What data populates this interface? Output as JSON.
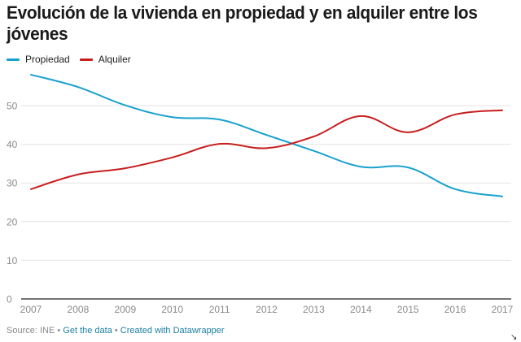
{
  "chart_data": {
    "type": "line",
    "title": "Evolución de la vivienda en propiedad y en alquiler entre los jóvenes",
    "xlabel": "",
    "ylabel": "",
    "x": [
      "2007",
      "2008",
      "2009",
      "2010",
      "2011",
      "2012",
      "2013",
      "2014",
      "2015",
      "2016",
      "2017"
    ],
    "series": [
      {
        "name": "Propiedad",
        "color": "#18a1cd",
        "values": [
          58.0,
          54.8,
          50.1,
          47.0,
          46.4,
          42.4,
          38.3,
          34.2,
          34.0,
          28.4,
          26.5
        ]
      },
      {
        "name": "Alquiler",
        "color": "#c71e1d",
        "values": [
          28.4,
          32.2,
          33.8,
          36.6,
          40.1,
          39.0,
          42.0,
          47.3,
          43.1,
          47.7,
          48.8
        ]
      }
    ],
    "yticks": [
      0,
      10,
      20,
      30,
      40,
      50
    ],
    "ylim": [
      0,
      58
    ],
    "grid": true,
    "legend": "top-left"
  },
  "footer": {
    "source": "Source: INE",
    "separator": " • ",
    "get_data": "Get the data",
    "created_with": "Created with Datawrapper"
  },
  "resize_icon": "↘"
}
